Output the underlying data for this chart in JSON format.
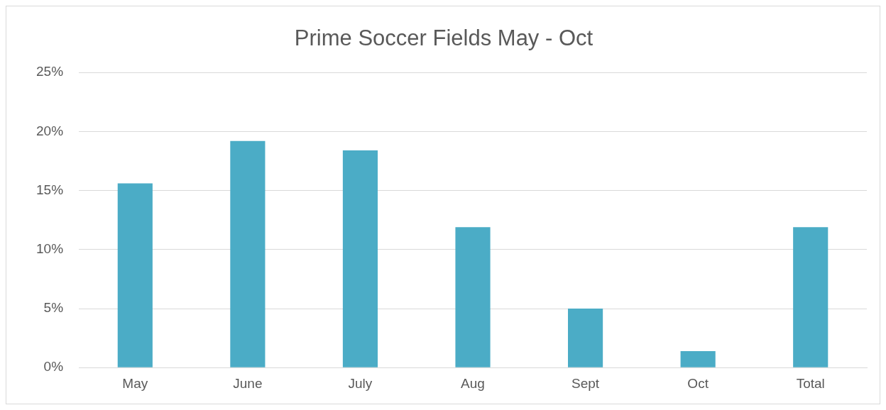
{
  "chart_data": {
    "type": "bar",
    "title": "Prime Soccer Fields May - Oct",
    "categories": [
      "May",
      "June",
      "July",
      "Aug",
      "Sept",
      "Oct",
      "Total"
    ],
    "values": [
      15.6,
      19.2,
      18.4,
      11.9,
      5.0,
      1.4,
      11.9
    ],
    "color": "#4bacc6",
    "ylim": [
      0,
      25
    ],
    "yticks": [
      {
        "value": 0,
        "label": "0%"
      },
      {
        "value": 5,
        "label": "5%"
      },
      {
        "value": 10,
        "label": "10%"
      },
      {
        "value": 15,
        "label": "15%"
      },
      {
        "value": 20,
        "label": "20%"
      },
      {
        "value": 25,
        "label": "25%"
      }
    ],
    "grid": "y",
    "legend": false
  }
}
